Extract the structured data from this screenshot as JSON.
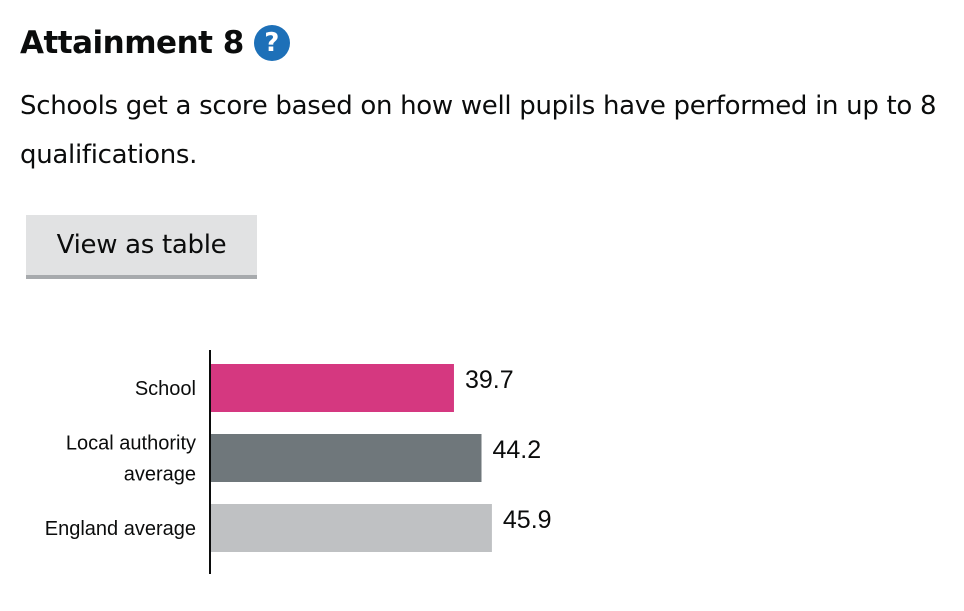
{
  "heading": {
    "title": "Attainment 8",
    "help_icon": "question-mark-icon",
    "help_glyph": "?"
  },
  "description": "Schools get a score based on how well pupils have performed in up to 8 qualifications.",
  "view_table_button": "View as table",
  "colors": {
    "school": "#d53880",
    "local_authority": "#6f777b",
    "england": "#bfc1c3",
    "help_icon": "#1d70b8"
  },
  "chart_data": {
    "type": "bar",
    "orientation": "horizontal",
    "categories": [
      [
        "School"
      ],
      [
        "Local authority",
        "average"
      ],
      [
        "England average"
      ]
    ],
    "values": [
      39.7,
      44.2,
      45.9
    ],
    "value_labels": [
      "39.7",
      "44.2",
      "45.9"
    ],
    "bar_colors": [
      "#d53880",
      "#6f777b",
      "#bfc1c3"
    ],
    "xlim": [
      0,
      100
    ],
    "grid": false,
    "legend": "none"
  }
}
